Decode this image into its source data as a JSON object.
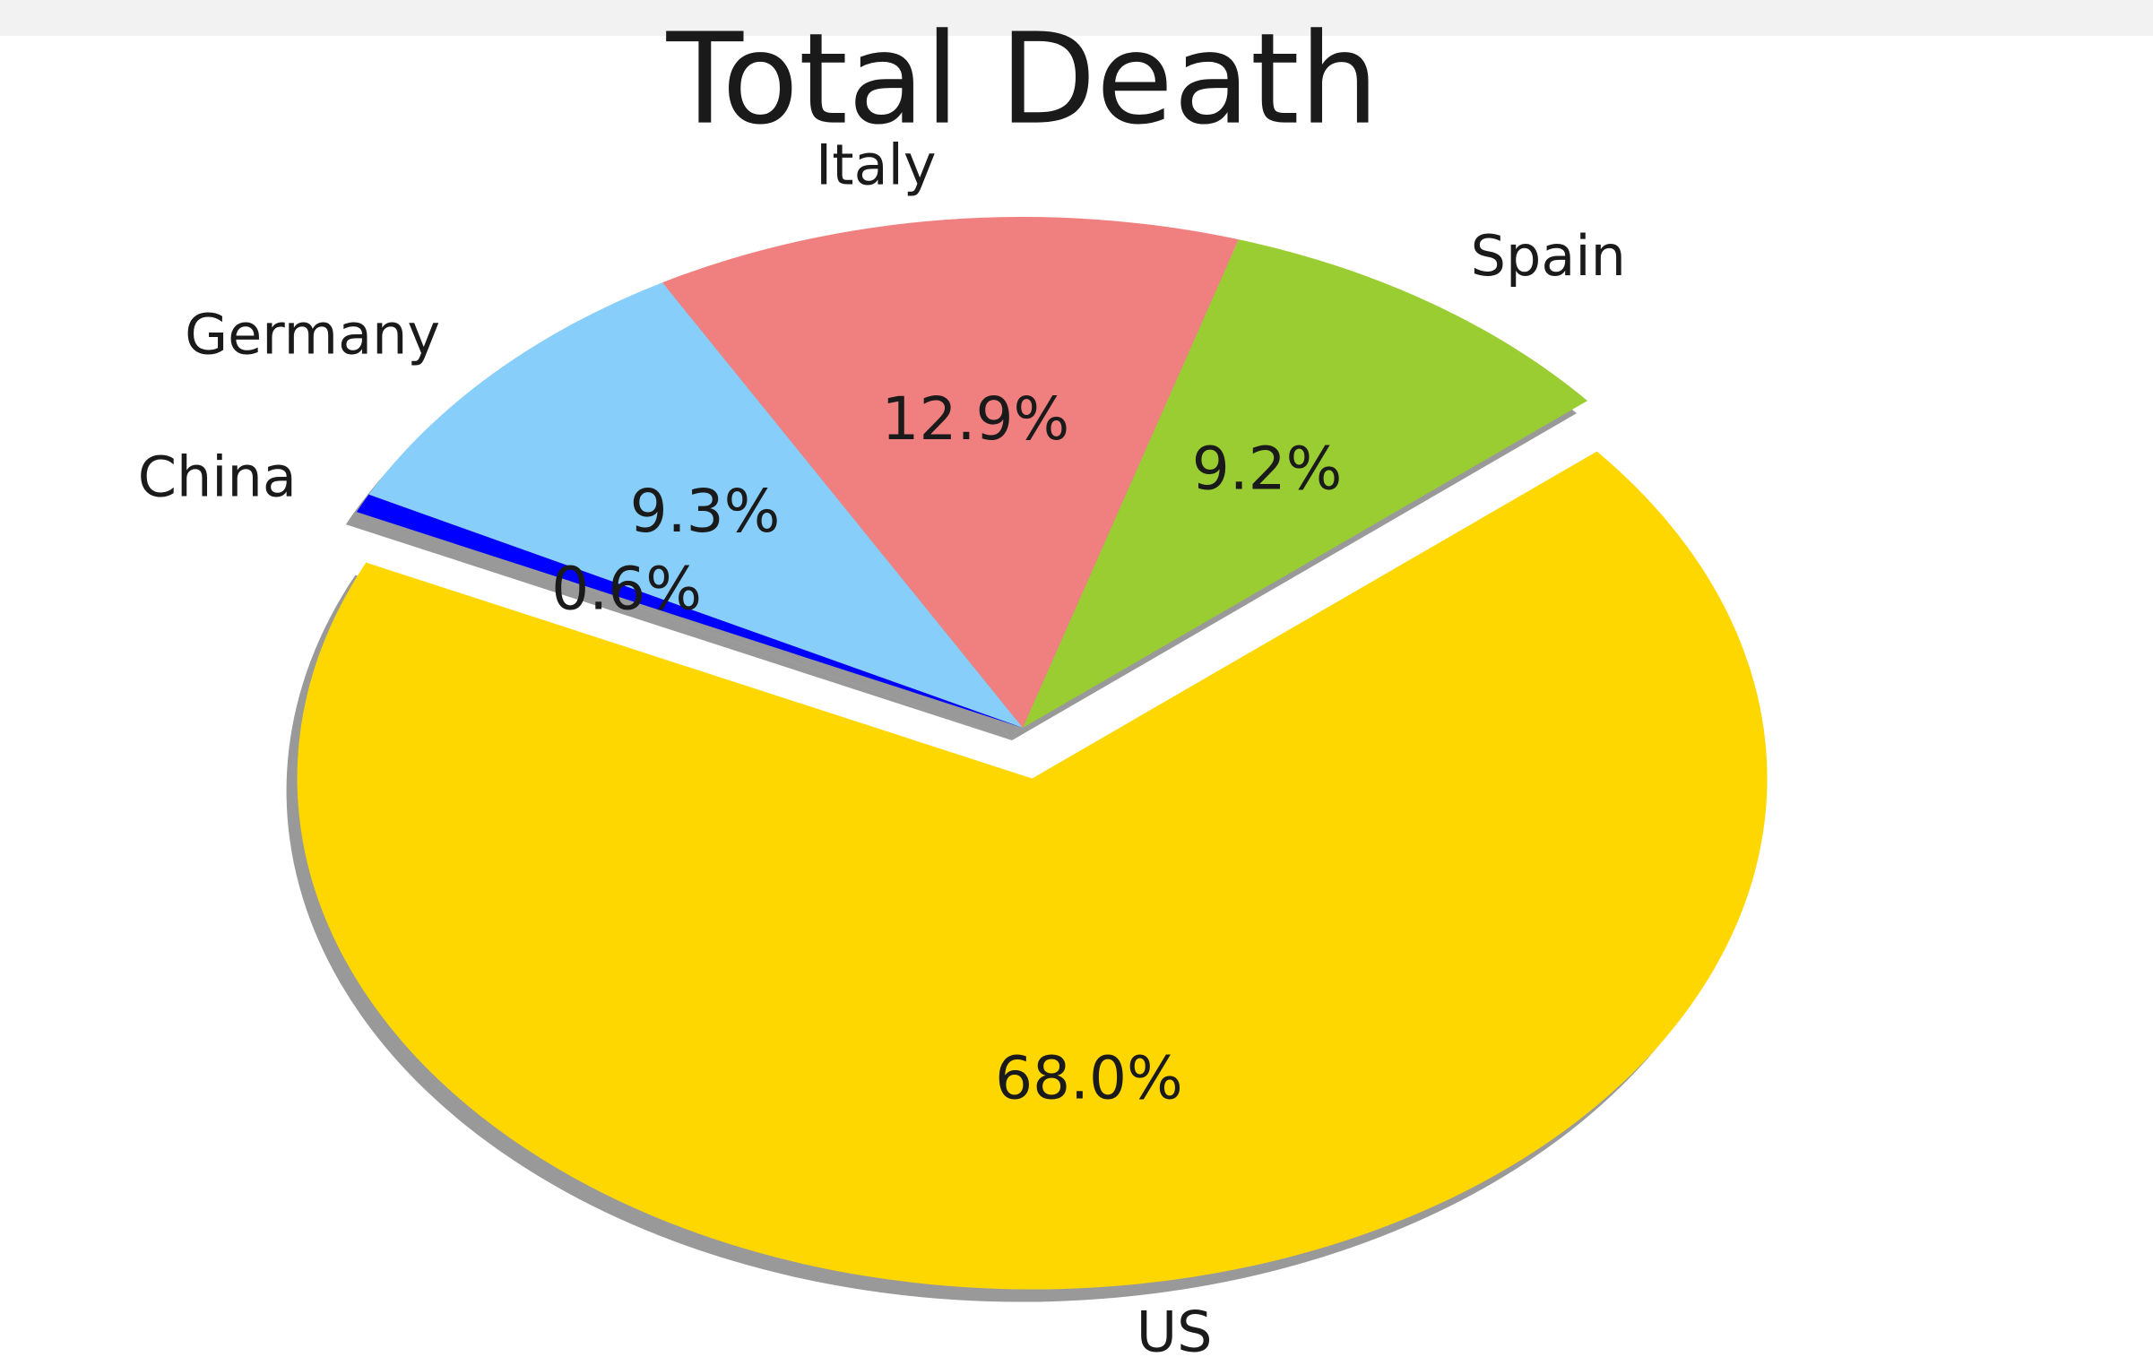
{
  "chart_data": {
    "type": "pie",
    "title": "Total Death",
    "categories": [
      "US",
      "Spain",
      "Italy",
      "Germany",
      "China"
    ],
    "values": [
      68.0,
      9.2,
      12.9,
      9.3,
      0.6
    ],
    "value_labels": [
      "68.0%",
      "9.2%",
      "12.9%",
      "9.3%",
      "0.6%"
    ],
    "colors": [
      "#ffd700",
      "#9acd32",
      "#f08080",
      "#87cefa",
      "#0000ff"
    ]
  }
}
